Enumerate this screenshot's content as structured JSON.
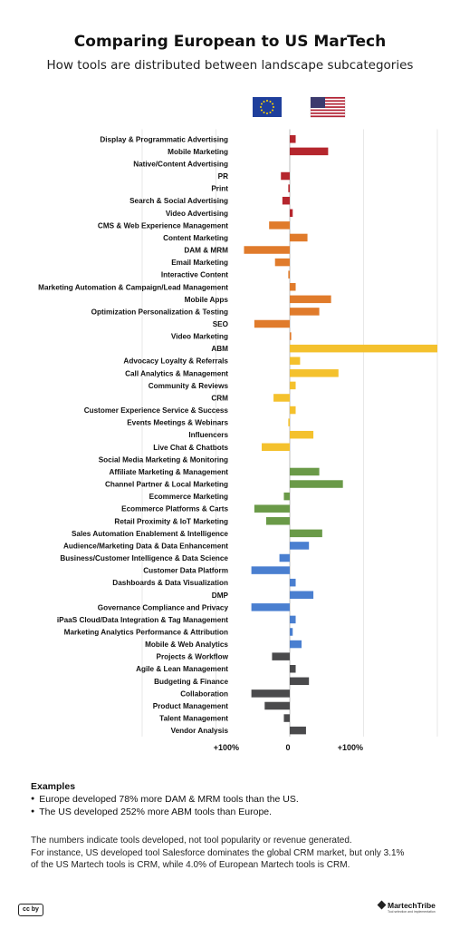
{
  "title": "Comparing European to US MarTech",
  "subtitle": "How  tools are distributed between landscape subcategories",
  "flags": {
    "eu": "eu-flag-icon",
    "us": "us-flag-icon"
  },
  "colors": {
    "advertising": "#b5262d",
    "content": "#e07b2b",
    "social": "#f4c12d",
    "commerce": "#6a9a48",
    "data": "#4a7fd0",
    "management": "#4a4a4c"
  },
  "chart_data": {
    "type": "bar",
    "orientation": "horizontal",
    "title": "Comparing European to US MarTech",
    "subtitle": "How  tools are distributed between landscape subcategories",
    "tick_labels": [
      "+100%",
      "0",
      "+100%"
    ],
    "xlim": [
      -100,
      100
    ],
    "categories": [
      {
        "label": "Display & Programmatic Advertising",
        "value": 4,
        "group": "advertising"
      },
      {
        "label": "Mobile Marketing",
        "value": 26,
        "group": "advertising"
      },
      {
        "label": "Native/Content Advertising",
        "value": 0,
        "group": "advertising"
      },
      {
        "label": "PR",
        "value": -6,
        "group": "advertising"
      },
      {
        "label": "Print",
        "value": -1,
        "group": "advertising"
      },
      {
        "label": "Search & Social Advertising",
        "value": -5,
        "group": "advertising"
      },
      {
        "label": "Video Advertising",
        "value": 2,
        "group": "advertising"
      },
      {
        "label": "CMS & Web Experience Management",
        "value": -14,
        "group": "content"
      },
      {
        "label": "Content Marketing",
        "value": 12,
        "group": "content"
      },
      {
        "label": "DAM & MRM",
        "value": -31,
        "group": "content"
      },
      {
        "label": "Email Marketing",
        "value": -10,
        "group": "content"
      },
      {
        "label": "Interactive Content",
        "value": -1,
        "group": "content"
      },
      {
        "label": "Marketing Automation & Campaign/Lead Management",
        "value": 4,
        "group": "content"
      },
      {
        "label": "Mobile Apps",
        "value": 28,
        "group": "content"
      },
      {
        "label": "Optimization Personalization & Testing",
        "value": 20,
        "group": "content"
      },
      {
        "label": "SEO",
        "value": -24,
        "group": "content"
      },
      {
        "label": "Video Marketing",
        "value": 1,
        "group": "content"
      },
      {
        "label": "ABM",
        "value": 100,
        "group": "social"
      },
      {
        "label": "Advocacy Loyalty & Referrals",
        "value": 7,
        "group": "social"
      },
      {
        "label": "Call Analytics & Management",
        "value": 33,
        "group": "social"
      },
      {
        "label": "Community & Reviews",
        "value": 4,
        "group": "social"
      },
      {
        "label": "CRM",
        "value": -11,
        "group": "social"
      },
      {
        "label": "Customer Experience Service & Success",
        "value": 4,
        "group": "social"
      },
      {
        "label": "Events Meetings & Webinars",
        "value": -1,
        "group": "social"
      },
      {
        "label": "Influencers",
        "value": 16,
        "group": "social"
      },
      {
        "label": "Live Chat & Chatbots",
        "value": -19,
        "group": "social"
      },
      {
        "label": "Social Media Marketing & Monitoring",
        "value": 0,
        "group": "social"
      },
      {
        "label": "Affiliate Marketing & Management",
        "value": 20,
        "group": "commerce"
      },
      {
        "label": "Channel Partner & Local Marketing",
        "value": 36,
        "group": "commerce"
      },
      {
        "label": "Ecommerce Marketing",
        "value": -4,
        "group": "commerce"
      },
      {
        "label": "Ecommerce Platforms & Carts",
        "value": -24,
        "group": "commerce"
      },
      {
        "label": "Retail Proximity & IoT Marketing",
        "value": -16,
        "group": "commerce"
      },
      {
        "label": "Sales Automation Enablement & Intelligence",
        "value": 22,
        "group": "commerce"
      },
      {
        "label": "Audience/Marketing Data & Data Enhancement",
        "value": 13,
        "group": "data"
      },
      {
        "label": "Business/Customer Intelligence & Data Science",
        "value": -7,
        "group": "data"
      },
      {
        "label": "Customer Data Platform",
        "value": -26,
        "group": "data"
      },
      {
        "label": "Dashboards & Data Visualization",
        "value": 4,
        "group": "data"
      },
      {
        "label": "DMP",
        "value": 16,
        "group": "data"
      },
      {
        "label": "Governance Compliance and Privacy",
        "value": -26,
        "group": "data"
      },
      {
        "label": "iPaaS Cloud/Data Integration & Tag Management",
        "value": 4,
        "group": "data"
      },
      {
        "label": "Marketing Analytics Performance & Attribution",
        "value": 2,
        "group": "data"
      },
      {
        "label": "Mobile & Web Analytics",
        "value": 8,
        "group": "data"
      },
      {
        "label": "Projects & Workflow",
        "value": -12,
        "group": "management"
      },
      {
        "label": "Agile & Lean Management",
        "value": 4,
        "group": "management"
      },
      {
        "label": "Budgeting & Finance",
        "value": 13,
        "group": "management"
      },
      {
        "label": "Collaboration",
        "value": -26,
        "group": "management"
      },
      {
        "label": "Product Management",
        "value": -17,
        "group": "management"
      },
      {
        "label": "Talent Management",
        "value": -4,
        "group": "management"
      },
      {
        "label": "Vendor Analysis",
        "value": 11,
        "group": "management"
      }
    ]
  },
  "examples": {
    "heading": "Examples",
    "items": [
      "Europe developed 78% more DAM & MRM tools than the US.",
      "The US developed 252% more ABM tools than Europe."
    ]
  },
  "note": [
    "The numbers indicate tools developed, not tool popularity or revenue generated.",
    "For instance, US developed tool Salesforce dominates the global CRM market, but only 3.1%",
    "of the US Martech tools is CRM, while 4.0% of European Martech tools is CRM."
  ],
  "footer": {
    "license": "cc by",
    "brand": "MartechTribe",
    "tagline": "Tool selection and implementation"
  }
}
